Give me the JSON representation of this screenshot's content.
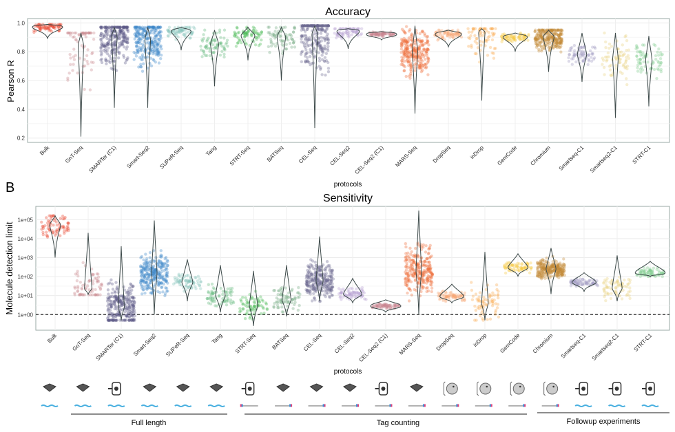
{
  "panel_label": "B",
  "chart_data": [
    {
      "type": "violin",
      "title": "Accuracy",
      "xlabel": "protocols",
      "ylabel": "Pearson R",
      "ylim": [
        0.17,
        1.03
      ],
      "yticks": [
        "0.2",
        "0.4",
        "0.6",
        "0.8",
        "1.0"
      ],
      "ytick_values": [
        0.2,
        0.4,
        0.6,
        0.8,
        1.0
      ],
      "grid": true,
      "categories": [
        "Bulk",
        "GnT-Seq",
        "SMARTer (C1)",
        "Smart-Seq2",
        "SUPeR-Seq",
        "Tang",
        "STRT-Seq",
        "BATSeq",
        "CEL-Seq",
        "CEL-Seq2",
        "CEL-Seq2 (C1)",
        "MARS-Seq",
        "DropSeq",
        "inDrop",
        "GemCode",
        "Chromium",
        "Smartseq-C1",
        "Smartseq2-C1",
        "STRT-C1"
      ],
      "min": [
        0.89,
        0.21,
        0.41,
        0.41,
        0.81,
        0.56,
        0.74,
        0.6,
        0.27,
        0.82,
        0.88,
        0.37,
        0.83,
        0.46,
        0.8,
        0.66,
        0.59,
        0.34,
        0.42
      ],
      "median": [
        0.97,
        0.84,
        0.9,
        0.88,
        0.94,
        0.85,
        0.91,
        0.9,
        0.92,
        0.94,
        0.92,
        0.8,
        0.92,
        0.93,
        0.9,
        0.9,
        0.78,
        0.75,
        0.74
      ],
      "max": [
        0.99,
        0.93,
        0.97,
        0.97,
        0.97,
        0.95,
        0.97,
        0.97,
        0.98,
        0.96,
        0.94,
        0.98,
        0.95,
        0.96,
        0.93,
        0.95,
        0.93,
        0.93,
        0.91
      ]
    },
    {
      "type": "violin",
      "title": "Sensitivity",
      "xlabel": "protocols",
      "ylabel": "Molecule detection limit",
      "yscale": "log",
      "ylim": [
        0.15,
        500000
      ],
      "yticks": [
        "1e+00",
        "1e+01",
        "1e+02",
        "1e+03",
        "1e+04",
        "1e+05"
      ],
      "ytick_values": [
        1,
        10,
        100,
        1000,
        10000,
        100000
      ],
      "reference_line": {
        "y": 1,
        "style": "dashed"
      },
      "grid": true,
      "categories": [
        "Bulk",
        "GnT-Seq",
        "SMARTer (C1)",
        "Smart-Seq2",
        "SUPeR-Seq",
        "Tang",
        "STRT-Seq",
        "BATSeq",
        "CEL-Seq",
        "CEL-Seq2",
        "CEL-Seq2 (C1)",
        "MARS-Seq",
        "DropSeq",
        "inDrop",
        "GemCode",
        "Chromium",
        "Smartseq-C1",
        "Smartseq2-C1",
        "STRT-C1"
      ],
      "min": [
        1000,
        11,
        0.5,
        1,
        5,
        1.3,
        0.25,
        0.8,
        5,
        4,
        1.3,
        1,
        4,
        0.5,
        100,
        12,
        16,
        5,
        100
      ],
      "median": [
        50000,
        25,
        2.5,
        150,
        50,
        10,
        3,
        6,
        60,
        12,
        2.8,
        200,
        9,
        4,
        300,
        250,
        50,
        25,
        160
      ],
      "max": [
        160000,
        20000,
        4000,
        90000,
        800,
        400,
        200,
        400,
        13000,
        80,
        6,
        300000,
        40,
        2000,
        1600,
        3200,
        160,
        1300,
        630
      ]
    }
  ],
  "colors": [
    "#e8412c",
    "#c9868b",
    "#5c5886",
    "#3b88c9",
    "#85c2bb",
    "#62b77b",
    "#46b850",
    "#74aa80",
    "#6a6890",
    "#b59fd2",
    "#c8848f",
    "#ee6d38",
    "#f5a26f",
    "#faaa4c",
    "#f6c83e",
    "#c48a37",
    "#9d97c1",
    "#e8d07d",
    "#7fca8c"
  ],
  "platforms": [
    "plate",
    "plate",
    "c1-chip",
    "plate",
    "plate",
    "plate",
    "c1-chip",
    "plate",
    "plate",
    "plate",
    "c1-chip",
    "plate",
    "droplet",
    "droplet",
    "droplet",
    "droplet",
    "c1-chip",
    "c1-chip",
    "c1-chip"
  ],
  "read_types": [
    "full-length",
    "full-length",
    "full-length",
    "full-length",
    "full-length",
    "full-length",
    "tag",
    "tag",
    "tag",
    "tag",
    "tag",
    "tag",
    "tag",
    "tag",
    "tag",
    "tag",
    "full-length",
    "full-length",
    "full-length"
  ],
  "groups": [
    {
      "label": "Full length"
    },
    {
      "label": "Tag counting"
    },
    {
      "label": "Followup experiments"
    }
  ]
}
